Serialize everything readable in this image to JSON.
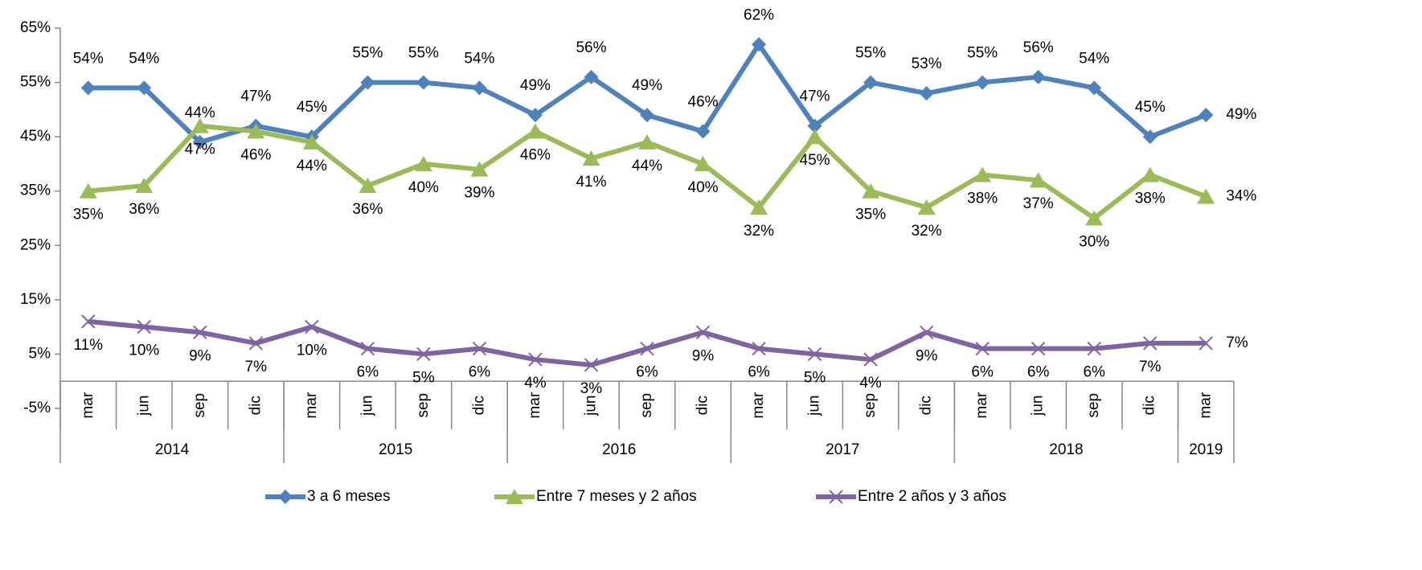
{
  "chart_data": {
    "type": "line",
    "categories": [
      "mar",
      "jun",
      "sep",
      "dic",
      "mar",
      "jun",
      "sep",
      "dic",
      "mar",
      "jun",
      "sep",
      "dic",
      "mar",
      "jun",
      "sep",
      "dic",
      "mar",
      "jun",
      "sep",
      "dic",
      "mar"
    ],
    "groups": [
      {
        "label": "2014",
        "n": 4
      },
      {
        "label": "2015",
        "n": 4
      },
      {
        "label": "2016",
        "n": 4
      },
      {
        "label": "2017",
        "n": 4
      },
      {
        "label": "2018",
        "n": 4
      },
      {
        "label": "2019",
        "n": 1
      }
    ],
    "series": [
      {
        "name": "3 a 6 meses",
        "color": "#4f81bd",
        "marker": "diamond",
        "values": [
          54,
          54,
          44,
          47,
          45,
          55,
          55,
          54,
          49,
          56,
          49,
          46,
          62,
          47,
          55,
          53,
          55,
          56,
          54,
          45,
          49
        ],
        "value_labels": [
          "54%",
          "54%",
          "44%",
          "47%",
          "45%",
          "55%",
          "55%",
          "54%",
          "49%",
          "56%",
          "49%",
          "46%",
          "62%",
          "47%",
          "55%",
          "53%",
          "55%",
          "56%",
          "54%",
          "45%",
          "49%"
        ]
      },
      {
        "name": "Entre 7 meses y 2 años",
        "color": "#9bbb59",
        "marker": "triangle",
        "values": [
          35,
          36,
          47,
          46,
          44,
          36,
          40,
          39,
          46,
          41,
          44,
          40,
          32,
          45,
          35,
          32,
          38,
          37,
          30,
          38,
          34
        ],
        "value_labels": [
          "35%",
          "36%",
          "47%",
          "46%",
          "44%",
          "36%",
          "40%",
          "39%",
          "46%",
          "41%",
          "44%",
          "40%",
          "32%",
          "45%",
          "35%",
          "32%",
          "38%",
          "37%",
          "30%",
          "38%",
          "34%"
        ]
      },
      {
        "name": "Entre 2 años y 3 años",
        "color": "#8064a2",
        "marker": "x",
        "values": [
          11,
          10,
          9,
          7,
          10,
          6,
          5,
          6,
          4,
          3,
          6,
          9,
          6,
          5,
          4,
          9,
          6,
          6,
          6,
          7,
          7
        ],
        "value_labels": [
          "11%",
          "10%",
          "9%",
          "7%",
          "10%",
          "6%",
          "5%",
          "6%",
          "4%",
          "3%",
          "6%",
          "9%",
          "6%",
          "5%",
          "4%",
          "9%",
          "6%",
          "6%",
          "6%",
          "7%",
          "7%"
        ]
      }
    ],
    "ylim": [
      -5,
      65
    ],
    "yticks": [
      {
        "value": -5,
        "label": "-5%"
      },
      {
        "value": 5,
        "label": "5%"
      },
      {
        "value": 15,
        "label": "15%"
      },
      {
        "value": 25,
        "label": "25%"
      },
      {
        "value": 35,
        "label": "35%"
      },
      {
        "value": 45,
        "label": "45%"
      },
      {
        "value": 55,
        "label": "55%"
      },
      {
        "value": 65,
        "label": "65%"
      }
    ],
    "legend": "bottom",
    "grid": false
  }
}
